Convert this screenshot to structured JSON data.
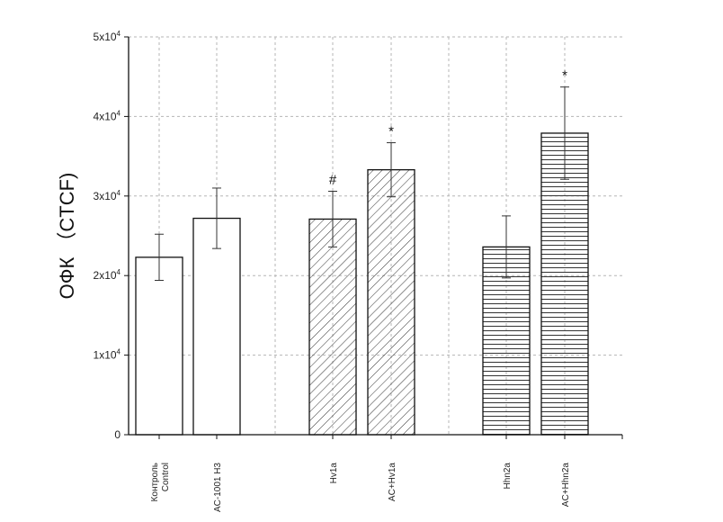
{
  "chart_data": {
    "type": "bar",
    "title": "",
    "xlabel": "",
    "ylabel": "ОФК （CTCF)",
    "ylim": [
      0,
      50000
    ],
    "grid": true,
    "y_ticks": [
      {
        "value": 0,
        "base": "0",
        "exp": ""
      },
      {
        "value": 10000,
        "base": "1x10",
        "exp": "4"
      },
      {
        "value": 20000,
        "base": "2x10",
        "exp": "4"
      },
      {
        "value": 30000,
        "base": "3x10",
        "exp": "4"
      },
      {
        "value": 40000,
        "base": "4x10",
        "exp": "4"
      },
      {
        "value": 50000,
        "base": "5x10",
        "exp": "4"
      }
    ],
    "bars": [
      {
        "label_lines": [
          "Контроль",
          "Control"
        ],
        "value": 22300,
        "error": 2900,
        "pattern": "none",
        "annotation": ""
      },
      {
        "label_lines": [
          "AC-1001 H3"
        ],
        "value": 27200,
        "error": 3800,
        "pattern": "none",
        "annotation": ""
      },
      {
        "label_lines": [
          "Hv1a"
        ],
        "value": 27100,
        "error": 3500,
        "pattern": "diagonal",
        "annotation": "#"
      },
      {
        "label_lines": [
          "AC+Hv1a"
        ],
        "value": 33300,
        "error": 3400,
        "pattern": "diagonal",
        "annotation": "*"
      },
      {
        "label_lines": [
          "Hhn2a"
        ],
        "value": 23600,
        "error": 3900,
        "pattern": "horizontal",
        "annotation": ""
      },
      {
        "label_lines": [
          "AC+Hhn2a"
        ],
        "value": 37900,
        "error": 5800,
        "pattern": "horizontal",
        "annotation": "*"
      }
    ]
  }
}
